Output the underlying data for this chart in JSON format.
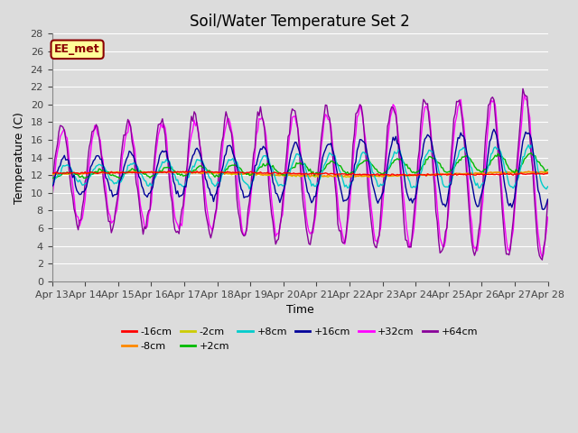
{
  "title": "Soil/Water Temperature Set 2",
  "xlabel": "Time",
  "ylabel": "Temperature (C)",
  "ylim": [
    0,
    28
  ],
  "yticks": [
    0,
    2,
    4,
    6,
    8,
    10,
    12,
    14,
    16,
    18,
    20,
    22,
    24,
    26,
    28
  ],
  "x_tick_labels": [
    "Apr 13",
    "Apr 14",
    "Apr 15",
    "Apr 16",
    "Apr 17",
    "Apr 18",
    "Apr 19",
    "Apr 20",
    "Apr 21",
    "Apr 22",
    "Apr 23",
    "Apr 24",
    "Apr 25",
    "Apr 26",
    "Apr 27",
    "Apr 28"
  ],
  "background_color": "#dcdcdc",
  "plot_bg_color": "#dcdcdc",
  "grid_color": "#ffffff",
  "annotation_text": "EE_met",
  "annotation_bg": "#ffff99",
  "annotation_border": "#8b0000",
  "series": [
    {
      "label": "-16cm",
      "color": "#ff0000"
    },
    {
      "label": "-8cm",
      "color": "#ff8800"
    },
    {
      "label": "-2cm",
      "color": "#cccc00"
    },
    {
      "label": "+2cm",
      "color": "#00bb00"
    },
    {
      "label": "+8cm",
      "color": "#00cccc"
    },
    {
      "label": "+16cm",
      "color": "#000099"
    },
    {
      "label": "+32cm",
      "color": "#ff00ff"
    },
    {
      "label": "+64cm",
      "color": "#880099"
    }
  ],
  "title_fontsize": 12,
  "axis_label_fontsize": 9,
  "tick_fontsize": 8,
  "legend_fontsize": 8
}
